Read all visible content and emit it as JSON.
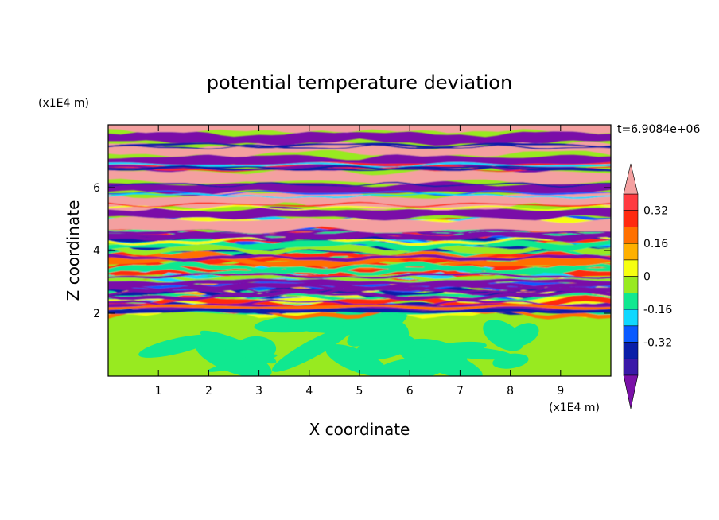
{
  "chart_data": {
    "type": "heatmap",
    "title": "potential temperature deviation",
    "xlabel": "X coordinate",
    "ylabel": "Z coordinate",
    "x_unit": "(x1E4 m)",
    "y_unit": "(x1E4 m)",
    "time_label": "t=6.9084e+06",
    "xlim": [
      0,
      10
    ],
    "ylim": [
      0,
      8
    ],
    "x_ticks": [
      "1",
      "2",
      "3",
      "4",
      "5",
      "6",
      "7",
      "8",
      "9"
    ],
    "y_ticks": [
      "2",
      "4",
      "6"
    ],
    "colorbar": {
      "levels": [
        -0.48,
        -0.4,
        -0.32,
        -0.24,
        -0.16,
        -0.08,
        0,
        0.08,
        0.16,
        0.24,
        0.32,
        0.4
      ],
      "colors": [
        "#7a10a8",
        "#3a18a8",
        "#0a1ea8",
        "#0a5aff",
        "#10d8ff",
        "#10e890",
        "#98ea20",
        "#f6ff10",
        "#ffb000",
        "#ff7000",
        "#ff2a10",
        "#ff3a40",
        "#f4a0a0"
      ],
      "labels": [
        "0.32",
        "0.16",
        "0",
        "-0.16",
        "-0.32"
      ]
    },
    "colors": {
      "lower_field": "#98ea20",
      "lower_pool": "#10e890",
      "band_purple": "#7a10a8",
      "band_pink": "#f4a0a0"
    }
  }
}
